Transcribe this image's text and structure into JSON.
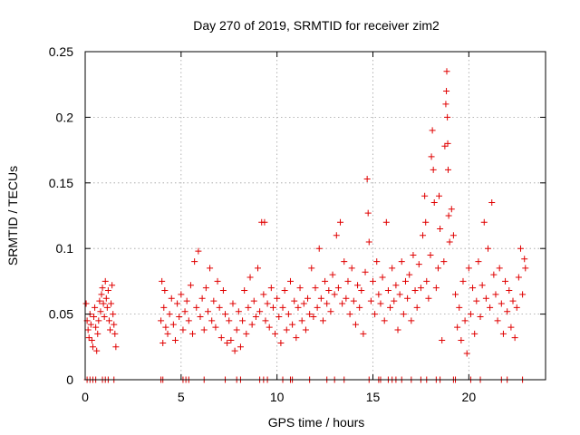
{
  "chart_data": {
    "type": "scatter",
    "title": "Day 270 of 2019, SRMTID for receiver zim2",
    "xlabel": "GPS time / hours",
    "ylabel": "SRMTID / TECUs",
    "xlim": [
      0,
      24.0
    ],
    "ylim": [
      0,
      0.25
    ],
    "xticks": [
      0,
      5,
      10,
      15,
      20
    ],
    "xtick_labels": [
      "0",
      "5",
      "10",
      "15",
      "20"
    ],
    "yticks": [
      0,
      0.05,
      0.1,
      0.15,
      0.2,
      0.25
    ],
    "ytick_labels": [
      "0",
      "0.05",
      "0.1",
      "0.15",
      "0.2",
      "0.25"
    ],
    "grid": true,
    "marker": "+",
    "series": [
      {
        "name": "SRMTID",
        "color": "#e00000",
        "points": [
          [
            0.05,
            0.058
          ],
          [
            0.1,
            0.045
          ],
          [
            0.15,
            0.038
          ],
          [
            0.2,
            0.032
          ],
          [
            0.25,
            0.05
          ],
          [
            0.3,
            0.042
          ],
          [
            0.35,
            0.03
          ],
          [
            0.4,
            0.025
          ],
          [
            0.45,
            0.048
          ],
          [
            0.5,
            0.055
          ],
          [
            0.55,
            0.04
          ],
          [
            0.6,
            0.022
          ],
          [
            0.65,
            0.035
          ],
          [
            0.7,
            0.045
          ],
          [
            0.75,
            0.06
          ],
          [
            0.8,
            0.052
          ],
          [
            0.85,
            0.065
          ],
          [
            0.9,
            0.07
          ],
          [
            0.95,
            0.058
          ],
          [
            1.0,
            0.048
          ],
          [
            1.05,
            0.075
          ],
          [
            1.1,
            0.062
          ],
          [
            1.15,
            0.055
          ],
          [
            1.2,
            0.068
          ],
          [
            1.25,
            0.045
          ],
          [
            1.3,
            0.038
          ],
          [
            1.35,
            0.058
          ],
          [
            1.4,
            0.072
          ],
          [
            1.45,
            0.05
          ],
          [
            1.5,
            0.042
          ],
          [
            1.55,
            0.035
          ],
          [
            1.6,
            0.025
          ],
          [
            3.95,
            0.045
          ],
          [
            4.0,
            0.075
          ],
          [
            4.05,
            0.028
          ],
          [
            4.1,
            0.055
          ],
          [
            4.15,
            0.068
          ],
          [
            4.2,
            0.04
          ],
          [
            4.3,
            0.035
          ],
          [
            4.4,
            0.05
          ],
          [
            4.5,
            0.062
          ],
          [
            4.6,
            0.042
          ],
          [
            4.7,
            0.03
          ],
          [
            4.8,
            0.058
          ],
          [
            4.9,
            0.048
          ],
          [
            5.0,
            0.065
          ],
          [
            5.1,
            0.038
          ],
          [
            5.2,
            0.052
          ],
          [
            5.3,
            0.06
          ],
          [
            5.4,
            0.045
          ],
          [
            5.5,
            0.072
          ],
          [
            5.6,
            0.035
          ],
          [
            5.7,
            0.09
          ],
          [
            5.8,
            0.055
          ],
          [
            5.9,
            0.098
          ],
          [
            6.0,
            0.048
          ],
          [
            6.1,
            0.062
          ],
          [
            6.2,
            0.038
          ],
          [
            6.3,
            0.07
          ],
          [
            6.4,
            0.052
          ],
          [
            6.5,
            0.085
          ],
          [
            6.6,
            0.045
          ],
          [
            6.7,
            0.06
          ],
          [
            6.8,
            0.04
          ],
          [
            6.9,
            0.075
          ],
          [
            7.0,
            0.055
          ],
          [
            7.1,
            0.032
          ],
          [
            7.2,
            0.068
          ],
          [
            7.3,
            0.05
          ],
          [
            7.4,
            0.028
          ],
          [
            7.5,
            0.045
          ],
          [
            7.6,
            0.03
          ],
          [
            7.7,
            0.058
          ],
          [
            7.8,
            0.022
          ],
          [
            7.9,
            0.038
          ],
          [
            8.0,
            0.052
          ],
          [
            8.1,
            0.025
          ],
          [
            8.2,
            0.045
          ],
          [
            8.3,
            0.068
          ],
          [
            8.4,
            0.035
          ],
          [
            8.5,
            0.055
          ],
          [
            8.6,
            0.078
          ],
          [
            8.7,
            0.042
          ],
          [
            8.8,
            0.06
          ],
          [
            8.9,
            0.048
          ],
          [
            9.0,
            0.085
          ],
          [
            9.1,
            0.052
          ],
          [
            9.2,
            0.12
          ],
          [
            9.3,
            0.065
          ],
          [
            9.35,
            0.12
          ],
          [
            9.4,
            0.045
          ],
          [
            9.5,
            0.058
          ],
          [
            9.6,
            0.04
          ],
          [
            9.7,
            0.07
          ],
          [
            9.8,
            0.055
          ],
          [
            9.9,
            0.035
          ],
          [
            10.0,
            0.062
          ],
          [
            10.1,
            0.048
          ],
          [
            10.2,
            0.028
          ],
          [
            10.3,
            0.055
          ],
          [
            10.4,
            0.068
          ],
          [
            10.5,
            0.038
          ],
          [
            10.6,
            0.05
          ],
          [
            10.7,
            0.075
          ],
          [
            10.8,
            0.042
          ],
          [
            10.9,
            0.06
          ],
          [
            11.0,
            0.032
          ],
          [
            11.1,
            0.055
          ],
          [
            11.2,
            0.07
          ],
          [
            11.3,
            0.045
          ],
          [
            11.4,
            0.058
          ],
          [
            11.5,
            0.038
          ],
          [
            11.6,
            0.062
          ],
          [
            11.7,
            0.05
          ],
          [
            11.8,
            0.085
          ],
          [
            11.9,
            0.048
          ],
          [
            12.0,
            0.07
          ],
          [
            12.1,
            0.055
          ],
          [
            12.2,
            0.1
          ],
          [
            12.3,
            0.062
          ],
          [
            12.4,
            0.045
          ],
          [
            12.5,
            0.075
          ],
          [
            12.6,
            0.058
          ],
          [
            12.7,
            0.068
          ],
          [
            12.8,
            0.052
          ],
          [
            12.9,
            0.08
          ],
          [
            13.0,
            0.065
          ],
          [
            13.1,
            0.11
          ],
          [
            13.2,
            0.07
          ],
          [
            13.3,
            0.12
          ],
          [
            13.4,
            0.058
          ],
          [
            13.5,
            0.09
          ],
          [
            13.6,
            0.062
          ],
          [
            13.7,
            0.075
          ],
          [
            13.8,
            0.05
          ],
          [
            13.9,
            0.085
          ],
          [
            14.0,
            0.06
          ],
          [
            14.1,
            0.042
          ],
          [
            14.2,
            0.072
          ],
          [
            14.3,
            0.055
          ],
          [
            14.4,
            0.068
          ],
          [
            14.5,
            0.035
          ],
          [
            14.6,
            0.082
          ],
          [
            14.7,
            0.153
          ],
          [
            14.75,
            0.127
          ],
          [
            14.8,
            0.105
          ],
          [
            14.9,
            0.06
          ],
          [
            15.0,
            0.075
          ],
          [
            15.1,
            0.05
          ],
          [
            15.2,
            0.09
          ],
          [
            15.3,
            0.065
          ],
          [
            15.4,
            0.058
          ],
          [
            15.5,
            0.078
          ],
          [
            15.6,
            0.045
          ],
          [
            15.7,
            0.12
          ],
          [
            15.8,
            0.068
          ],
          [
            15.9,
            0.055
          ],
          [
            16.0,
            0.085
          ],
          [
            16.1,
            0.06
          ],
          [
            16.2,
            0.072
          ],
          [
            16.3,
            0.038
          ],
          [
            16.4,
            0.065
          ],
          [
            16.5,
            0.09
          ],
          [
            16.6,
            0.05
          ],
          [
            16.7,
            0.075
          ],
          [
            16.8,
            0.062
          ],
          [
            16.9,
            0.08
          ],
          [
            17.0,
            0.045
          ],
          [
            17.1,
            0.095
          ],
          [
            17.2,
            0.068
          ],
          [
            17.3,
            0.055
          ],
          [
            17.4,
            0.088
          ],
          [
            17.5,
            0.07
          ],
          [
            17.6,
            0.11
          ],
          [
            17.7,
            0.14
          ],
          [
            17.75,
            0.12
          ],
          [
            17.8,
            0.075
          ],
          [
            17.9,
            0.062
          ],
          [
            18.0,
            0.095
          ],
          [
            18.05,
            0.17
          ],
          [
            18.1,
            0.19
          ],
          [
            18.15,
            0.16
          ],
          [
            18.2,
            0.135
          ],
          [
            18.3,
            0.07
          ],
          [
            18.4,
            0.085
          ],
          [
            18.45,
            0.14
          ],
          [
            18.5,
            0.115
          ],
          [
            18.6,
            0.03
          ],
          [
            18.7,
            0.09
          ],
          [
            18.75,
            0.178
          ],
          [
            18.8,
            0.21
          ],
          [
            18.83,
            0.22
          ],
          [
            18.85,
            0.235
          ],
          [
            18.88,
            0.2
          ],
          [
            18.9,
            0.18
          ],
          [
            18.92,
            0.16
          ],
          [
            18.95,
            0.125
          ],
          [
            19.0,
            0.105
          ],
          [
            19.1,
            0.13
          ],
          [
            19.2,
            0.11
          ],
          [
            19.3,
            0.065
          ],
          [
            19.4,
            0.04
          ],
          [
            19.5,
            0.055
          ],
          [
            19.6,
            0.03
          ],
          [
            19.7,
            0.075
          ],
          [
            19.8,
            0.045
          ],
          [
            19.9,
            0.02
          ],
          [
            20.0,
            0.085
          ],
          [
            20.1,
            0.05
          ],
          [
            20.2,
            0.07
          ],
          [
            20.3,
            0.035
          ],
          [
            20.4,
            0.06
          ],
          [
            20.5,
            0.09
          ],
          [
            20.6,
            0.048
          ],
          [
            20.7,
            0.072
          ],
          [
            20.8,
            0.12
          ],
          [
            20.9,
            0.062
          ],
          [
            21.0,
            0.1
          ],
          [
            21.1,
            0.055
          ],
          [
            21.2,
            0.135
          ],
          [
            21.3,
            0.08
          ],
          [
            21.4,
            0.065
          ],
          [
            21.5,
            0.045
          ],
          [
            21.6,
            0.085
          ],
          [
            21.7,
            0.058
          ],
          [
            21.8,
            0.035
          ],
          [
            21.9,
            0.075
          ],
          [
            22.0,
            0.052
          ],
          [
            22.1,
            0.068
          ],
          [
            22.2,
            0.04
          ],
          [
            22.3,
            0.06
          ],
          [
            22.4,
            0.032
          ],
          [
            22.5,
            0.055
          ],
          [
            22.6,
            0.078
          ],
          [
            22.7,
            0.1
          ],
          [
            22.8,
            0.065
          ],
          [
            22.9,
            0.092
          ],
          [
            22.95,
            0.085
          ]
        ],
        "zero_points": [
          0.1,
          0.25,
          0.4,
          0.55,
          0.9,
          1.05,
          1.2,
          1.5,
          3.95,
          4.05,
          5.1,
          5.25,
          5.4,
          6.2,
          7.3,
          7.9,
          8.1,
          9.1,
          9.3,
          9.5,
          10.3,
          10.7,
          10.8,
          11.7,
          12.6,
          13.0,
          13.5,
          14.8,
          15.3,
          15.4,
          15.8,
          16.0,
          16.2,
          16.5,
          17.0,
          17.5,
          17.8,
          18.3,
          18.5,
          19.2,
          19.3,
          20.1,
          20.6,
          21.7,
          22.0,
          22.8
        ]
      }
    ]
  }
}
